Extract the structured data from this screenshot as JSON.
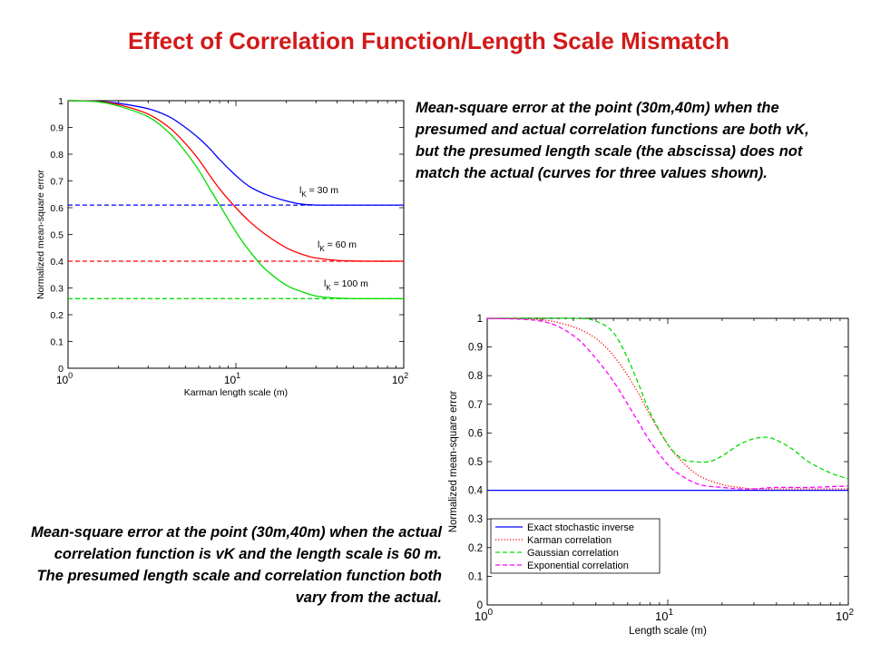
{
  "title": "Effect of Correlation Function/Length Scale Mismatch",
  "title_color": "#d21a1a",
  "caption_top": "Mean-square error at the point (30m,40m) when the presumed and actual correlation functions are both vK, but the presumed length scale (the abscissa) does not match the actual (curves for three values shown).",
  "caption_bottom": "Mean-square error at the point (30m,40m) when the actual correlation function is vK and the length scale is 60 m. The presumed length scale and correlation function both vary from the actual.",
  "chart_data": [
    {
      "type": "line",
      "xscale": "log",
      "xlabel": "Karman length scale (m)",
      "ylabel": "Normalized mean-square error",
      "xlim": [
        1,
        100
      ],
      "ylim": [
        0,
        1
      ],
      "x_ticks": [
        "10^0",
        "10^1",
        "10^2"
      ],
      "y_ticks": [
        "0",
        "0.1",
        "0.2",
        "0.3",
        "0.4",
        "0.5",
        "0.6",
        "0.7",
        "0.8",
        "0.9",
        "1"
      ],
      "series": [
        {
          "name": "l_K = 30 m",
          "label_main": "l",
          "label_sub": "K",
          "label_rest": " = 30 m",
          "color": "#0000ff",
          "style": "solid",
          "x": [
            1,
            1.5,
            2,
            3,
            4,
            5,
            6,
            7,
            8,
            10,
            12,
            15,
            20,
            25,
            30,
            40,
            60,
            100
          ],
          "y": [
            1.0,
            0.998,
            0.99,
            0.97,
            0.94,
            0.9,
            0.86,
            0.82,
            0.78,
            0.72,
            0.68,
            0.65,
            0.625,
            0.613,
            0.61,
            0.61,
            0.61,
            0.61
          ]
        },
        {
          "name": "l_K = 30 m asymptote",
          "color": "#0000ff",
          "style": "dashed",
          "x": [
            1,
            100
          ],
          "y": [
            0.61,
            0.61
          ]
        },
        {
          "name": "l_K = 60 m",
          "label_main": "l",
          "label_sub": "K",
          "label_rest": " = 60 m",
          "color": "#ff0000",
          "style": "solid",
          "x": [
            1,
            1.5,
            2,
            3,
            4,
            5,
            6,
            7,
            8,
            10,
            12,
            15,
            20,
            25,
            30,
            40,
            60,
            100
          ],
          "y": [
            1.0,
            0.997,
            0.985,
            0.95,
            0.9,
            0.84,
            0.78,
            0.72,
            0.67,
            0.6,
            0.55,
            0.5,
            0.45,
            0.425,
            0.412,
            0.403,
            0.4,
            0.4
          ]
        },
        {
          "name": "l_K = 60 m asymptote",
          "color": "#ff0000",
          "style": "dashed",
          "x": [
            1,
            100
          ],
          "y": [
            0.4,
            0.4
          ]
        },
        {
          "name": "l_K = 100 m",
          "label_main": "l",
          "label_sub": "K",
          "label_rest": " = 100 m",
          "color": "#00dd00",
          "style": "solid",
          "x": [
            1,
            1.5,
            2,
            3,
            4,
            5,
            6,
            7,
            8,
            10,
            12,
            15,
            20,
            25,
            30,
            40,
            60,
            100
          ],
          "y": [
            1.0,
            0.996,
            0.98,
            0.94,
            0.88,
            0.81,
            0.74,
            0.67,
            0.61,
            0.51,
            0.44,
            0.37,
            0.31,
            0.285,
            0.27,
            0.262,
            0.26,
            0.26
          ]
        },
        {
          "name": "l_K = 100 m asymptote",
          "color": "#00dd00",
          "style": "dashed",
          "x": [
            1,
            100
          ],
          "y": [
            0.26,
            0.26
          ]
        }
      ]
    },
    {
      "type": "line",
      "xscale": "log",
      "xlabel": "Length scale (m)",
      "ylabel": "Normalized mean-square error",
      "xlim": [
        1,
        100
      ],
      "ylim": [
        0,
        1
      ],
      "x_ticks": [
        "10^0",
        "10^1",
        "10^2"
      ],
      "y_ticks": [
        "0",
        "0.1",
        "0.2",
        "0.3",
        "0.4",
        "0.5",
        "0.6",
        "0.7",
        "0.8",
        "0.9",
        "1"
      ],
      "legend_position": "bottom-left",
      "series": [
        {
          "name": "Exact stochastic inverse",
          "color": "#0000ff",
          "style": "solid",
          "x": [
            1,
            100
          ],
          "y": [
            0.4,
            0.4
          ]
        },
        {
          "name": "Karman correlation",
          "color": "#ff0000",
          "style": "dotted",
          "x": [
            1,
            2,
            3,
            4,
            5,
            6,
            7,
            8,
            10,
            12,
            15,
            20,
            25,
            30,
            40,
            60,
            100
          ],
          "y": [
            1.0,
            0.995,
            0.97,
            0.93,
            0.87,
            0.8,
            0.73,
            0.66,
            0.56,
            0.5,
            0.45,
            0.42,
            0.41,
            0.405,
            0.405,
            0.405,
            0.405
          ]
        },
        {
          "name": "Gaussian correlation",
          "color": "#00dd00",
          "style": "dashed",
          "x": [
            1,
            3,
            4,
            5,
            6,
            7,
            8,
            10,
            12,
            14,
            17,
            20,
            25,
            30,
            35,
            40,
            50,
            60,
            80,
            100
          ],
          "y": [
            1.0,
            1.0,
            0.99,
            0.95,
            0.86,
            0.76,
            0.67,
            0.56,
            0.51,
            0.5,
            0.5,
            0.52,
            0.56,
            0.58,
            0.585,
            0.575,
            0.54,
            0.5,
            0.46,
            0.44
          ]
        },
        {
          "name": "Exponential correlation",
          "color": "#ff00ff",
          "style": "dashed",
          "x": [
            1,
            2,
            3,
            4,
            5,
            6,
            7,
            8,
            10,
            12,
            15,
            20,
            25,
            30,
            40,
            60,
            100
          ],
          "y": [
            1.0,
            0.99,
            0.94,
            0.86,
            0.78,
            0.7,
            0.63,
            0.57,
            0.49,
            0.45,
            0.42,
            0.41,
            0.405,
            0.405,
            0.41,
            0.41,
            0.415
          ]
        }
      ]
    }
  ]
}
